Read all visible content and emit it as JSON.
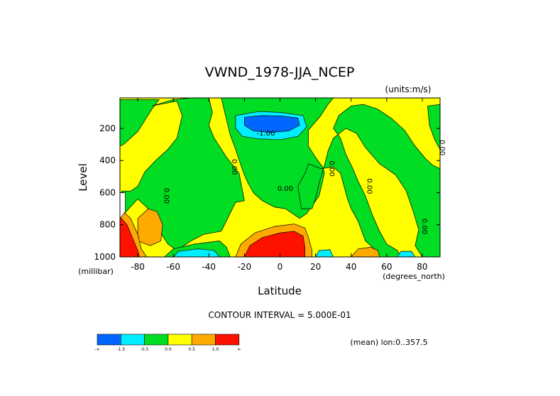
{
  "chart_data": {
    "type": "heatmap",
    "title": "VWND_1978-JJA_NCEP",
    "units_label": "(units:m/s)",
    "xlabel": "Latitude",
    "ylabel": "Level",
    "x_unit_label": "(degrees_north)",
    "y_unit_label": "(millibar)",
    "xlim": [
      -90,
      90
    ],
    "ylim": [
      1000,
      10
    ],
    "x_ticks": [
      "-80",
      "-60",
      "-40",
      "-20",
      "0",
      "20",
      "40",
      "60",
      "80"
    ],
    "x_tick_values": [
      -80,
      -60,
      -40,
      -20,
      0,
      20,
      40,
      60,
      80
    ],
    "y_ticks": [
      "200",
      "400",
      "600",
      "800",
      "1000"
    ],
    "y_tick_values": [
      200,
      400,
      600,
      800,
      1000
    ],
    "contour_interval_text": "CONTOUR INTERVAL = 5.000E-01",
    "mean_text": "(mean) lon:0..357.5",
    "legend": {
      "colors": [
        "#0066ff",
        "#00eeff",
        "#00dd22",
        "#ffff00",
        "#ffaa00",
        "#ff1100"
      ],
      "labels": [
        "-∞",
        "-1.5",
        "-0.5",
        "0.0",
        "0.5",
        "1.0",
        "∞"
      ]
    },
    "contour_labels": [
      {
        "text": "-1.00",
        "lat": -8,
        "lev": 245
      },
      {
        "text": "0.00",
        "lat": -27,
        "lev": 440
      },
      {
        "text": "0.00",
        "lat": -65,
        "lev": 620
      },
      {
        "text": "0.00",
        "lat": 3,
        "lev": 590
      },
      {
        "text": "0.00",
        "lat": 28,
        "lev": 450
      },
      {
        "text": "0.00",
        "lat": 49,
        "lev": 560
      },
      {
        "text": "0.00",
        "lat": 80,
        "lev": 810
      },
      {
        "text": "0.00",
        "lat": 90,
        "lev": 320
      }
    ],
    "regions": [
      {
        "value_band": "0.0 to 0.5",
        "color": "#ffff00",
        "points": [
          [
            -90,
            10
          ],
          [
            90,
            10
          ],
          [
            90,
            1000
          ],
          [
            -90,
            1000
          ]
        ]
      },
      {
        "value_band": "-0.5 to 0.0",
        "color": "#00dd22",
        "points": [
          [
            -90,
            20
          ],
          [
            -68,
            20
          ],
          [
            -72,
            80
          ],
          [
            -80,
            220
          ],
          [
            -88,
            300
          ],
          [
            -90,
            310
          ]
        ]
      },
      {
        "value_band": "-0.5 to 0.0",
        "color": "#00dd22",
        "points": [
          [
            -72,
            60
          ],
          [
            -58,
            30
          ],
          [
            -55,
            120
          ],
          [
            -58,
            260
          ],
          [
            -63,
            330
          ],
          [
            -70,
            400
          ],
          [
            -76,
            470
          ],
          [
            -80,
            560
          ],
          [
            -84,
            590
          ],
          [
            -89,
            590
          ],
          [
            -90,
            760
          ],
          [
            -80,
            640
          ],
          [
            -75,
            690
          ],
          [
            -70,
            770
          ],
          [
            -66,
            870
          ],
          [
            -63,
            920
          ],
          [
            -58,
            960
          ],
          [
            -50,
            900
          ],
          [
            -43,
            860
          ],
          [
            -33,
            840
          ],
          [
            -25,
            660
          ],
          [
            -20,
            650
          ],
          [
            -23,
            480
          ],
          [
            -30,
            380
          ],
          [
            -37,
            260
          ],
          [
            -40,
            180
          ],
          [
            -38,
            100
          ],
          [
            -40,
            10
          ],
          [
            -50,
            10
          ],
          [
            -60,
            20
          ]
        ]
      },
      {
        "value_band": "-0.5 to 0.0",
        "color": "#00dd22",
        "points": [
          [
            -33,
            10
          ],
          [
            30,
            10
          ],
          [
            27,
            50
          ],
          [
            23,
            120
          ],
          [
            16,
            210
          ],
          [
            16,
            310
          ],
          [
            20,
            380
          ],
          [
            24,
            440
          ],
          [
            25,
            480
          ],
          [
            22,
            620
          ],
          [
            15,
            730
          ],
          [
            11,
            760
          ],
          [
            3,
            700
          ],
          [
            -3,
            690
          ],
          [
            -10,
            650
          ],
          [
            -15,
            600
          ],
          [
            -18,
            540
          ],
          [
            -20,
            490
          ],
          [
            -22,
            430
          ],
          [
            -25,
            330
          ],
          [
            -28,
            240
          ],
          [
            -30,
            150
          ]
        ]
      },
      {
        "value_band": "-0.5 to 0.0",
        "color": "#00dd22",
        "points": [
          [
            16,
            420
          ],
          [
            23,
            450
          ],
          [
            30,
            440
          ],
          [
            34,
            480
          ],
          [
            36,
            560
          ],
          [
            38,
            640
          ],
          [
            40,
            700
          ],
          [
            44,
            780
          ],
          [
            48,
            900
          ],
          [
            52,
            940
          ],
          [
            56,
            1000
          ],
          [
            68,
            1000
          ],
          [
            66,
            960
          ],
          [
            60,
            920
          ],
          [
            56,
            840
          ],
          [
            52,
            740
          ],
          [
            48,
            620
          ],
          [
            44,
            530
          ],
          [
            41,
            450
          ],
          [
            37,
            360
          ],
          [
            34,
            260
          ],
          [
            30,
            200
          ],
          [
            33,
            120
          ],
          [
            40,
            60
          ],
          [
            47,
            50
          ],
          [
            55,
            80
          ],
          [
            63,
            140
          ],
          [
            70,
            210
          ],
          [
            76,
            310
          ],
          [
            82,
            390
          ],
          [
            86,
            430
          ],
          [
            90,
            450
          ],
          [
            90,
            1000
          ],
          [
            80,
            1000
          ],
          [
            76,
            930
          ],
          [
            78,
            830
          ],
          [
            75,
            720
          ],
          [
            71,
            590
          ],
          [
            65,
            490
          ],
          [
            56,
            420
          ],
          [
            48,
            320
          ],
          [
            43,
            230
          ],
          [
            37,
            200
          ],
          [
            30,
            260
          ],
          [
            27,
            340
          ],
          [
            25,
            430
          ],
          [
            22,
            540
          ],
          [
            20,
            640
          ],
          [
            18,
            700
          ],
          [
            12,
            700
          ],
          [
            10,
            560
          ],
          [
            14,
            480
          ]
        ]
      },
      {
        "value_band": "-0.5 to 0.0",
        "color": "#00dd22",
        "points": [
          [
            83,
            60
          ],
          [
            90,
            50
          ],
          [
            90,
            330
          ],
          [
            87,
            270
          ],
          [
            84,
            180
          ]
        ]
      },
      {
        "value_band": "-0.5 to 0.0",
        "color": "#00dd22",
        "points": [
          [
            -65,
            1000
          ],
          [
            -60,
            950
          ],
          [
            -48,
            920
          ],
          [
            -34,
            900
          ],
          [
            -30,
            940
          ],
          [
            -28,
            1000
          ]
        ]
      },
      {
        "value_band": "-1.5 to -0.5",
        "color": "#00eeff",
        "points": [
          [
            -25,
            120
          ],
          [
            -12,
            95
          ],
          [
            0,
            100
          ],
          [
            13,
            120
          ],
          [
            15,
            190
          ],
          [
            10,
            250
          ],
          [
            0,
            270
          ],
          [
            -12,
            265
          ],
          [
            -21,
            250
          ],
          [
            -25,
            200
          ]
        ]
      },
      {
        "value_band": "below -1.5",
        "color": "#0066ff",
        "points": [
          [
            -20,
            130
          ],
          [
            -10,
            120
          ],
          [
            0,
            122
          ],
          [
            10,
            135
          ],
          [
            11,
            180
          ],
          [
            5,
            215
          ],
          [
            -5,
            225
          ],
          [
            -15,
            215
          ],
          [
            -20,
            180
          ]
        ]
      },
      {
        "value_band": "-1.5 to -0.5",
        "color": "#00eeff",
        "points": [
          [
            -60,
            1000
          ],
          [
            -57,
            965
          ],
          [
            -46,
            950
          ],
          [
            -37,
            960
          ],
          [
            -34,
            1000
          ]
        ]
      },
      {
        "value_band": "-1.5 to -0.5",
        "color": "#00eeff",
        "points": [
          [
            20,
            1000
          ],
          [
            22,
            960
          ],
          [
            28,
            955
          ],
          [
            30,
            1000
          ]
        ]
      },
      {
        "value_band": "-1.5 to -0.5",
        "color": "#00eeff",
        "points": [
          [
            66,
            1000
          ],
          [
            68,
            965
          ],
          [
            74,
            965
          ],
          [
            76,
            1000
          ]
        ]
      },
      {
        "value_band": "0.5 to 1.0",
        "color": "#ffaa00",
        "points": [
          [
            -25,
            1000
          ],
          [
            -22,
            920
          ],
          [
            -14,
            850
          ],
          [
            -3,
            810
          ],
          [
            8,
            795
          ],
          [
            14,
            820
          ],
          [
            16,
            880
          ],
          [
            18,
            960
          ],
          [
            18,
            1000
          ]
        ]
      },
      {
        "value_band": "above 1.0",
        "color": "#ff1100",
        "points": [
          [
            -20,
            1000
          ],
          [
            -17,
            930
          ],
          [
            -10,
            880
          ],
          [
            0,
            850
          ],
          [
            8,
            840
          ],
          [
            13,
            870
          ],
          [
            14,
            940
          ],
          [
            14,
            1000
          ]
        ]
      },
      {
        "value_band": "0.5 to 1.0",
        "color": "#ffaa00",
        "points": [
          [
            -80,
            760
          ],
          [
            -74,
            700
          ],
          [
            -69,
            720
          ],
          [
            -66,
            800
          ],
          [
            -67,
            900
          ],
          [
            -73,
            930
          ],
          [
            -80,
            900
          ]
        ]
      },
      {
        "value_band": "0.5 to 1.0",
        "color": "#ffaa00",
        "points": [
          [
            -90,
            700
          ],
          [
            -84,
            760
          ],
          [
            -80,
            860
          ],
          [
            -78,
            950
          ],
          [
            -75,
            1000
          ],
          [
            -90,
            1000
          ]
        ]
      },
      {
        "value_band": "above 1.0",
        "color": "#ff1100",
        "points": [
          [
            -90,
            750
          ],
          [
            -86,
            800
          ],
          [
            -83,
            880
          ],
          [
            -80,
            960
          ],
          [
            -79,
            1000
          ],
          [
            -90,
            1000
          ]
        ]
      },
      {
        "value_band": "0.5 to 1.0",
        "color": "#ffaa00",
        "points": [
          [
            40,
            1000
          ],
          [
            44,
            950
          ],
          [
            51,
            940
          ],
          [
            55,
            960
          ],
          [
            56,
            1000
          ]
        ]
      },
      {
        "value_band": "no data",
        "color": "#ffffff",
        "points": [
          [
            -90,
            600
          ],
          [
            -87,
            600
          ],
          [
            -87,
            720
          ],
          [
            -90,
            760
          ]
        ]
      }
    ]
  }
}
